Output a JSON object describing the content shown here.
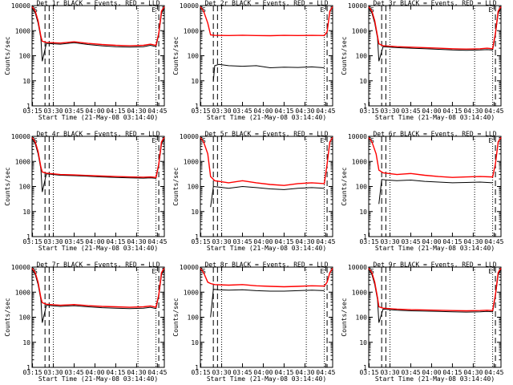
{
  "chart_data": [
    {
      "type": "line",
      "title": "Det 1r BLACK = Events, RED = LLD",
      "xlabel": "Start Time (21-May-08 03:14:40)",
      "ylabel": "Counts/sec",
      "xticks": [
        "03:15",
        "03:30",
        "03:45",
        "04:00",
        "04:15",
        "04:30",
        "04:45"
      ],
      "yticks": [
        "1",
        "10",
        "100",
        "1000",
        "10000"
      ],
      "xlim": [
        "03:14:40",
        "04:50"
      ],
      "ylim": [
        1,
        10000
      ],
      "yscale": "log",
      "series": [
        {
          "color": "#000000",
          "x": [
            "03:14:40",
            "03:17",
            "03:19",
            "03:21",
            "03:22",
            "03:25",
            "03:35",
            "03:45",
            "03:55",
            "04:05",
            "04:15",
            "04:25",
            "04:35",
            "04:40",
            "04:44",
            "04:46",
            "04:48",
            "04:50"
          ],
          "values": [
            8000,
            5000,
            2000,
            500,
            60,
            310,
            290,
            330,
            280,
            250,
            230,
            220,
            230,
            260,
            230,
            700,
            5000,
            8000
          ]
        },
        {
          "color": "#ff0000",
          "x": [
            "03:14:40",
            "03:17",
            "03:19",
            "03:21",
            "03:22",
            "03:25",
            "03:35",
            "03:45",
            "03:55",
            "04:05",
            "04:15",
            "04:25",
            "04:35",
            "04:40",
            "04:44",
            "04:46",
            "04:48",
            "04:50"
          ],
          "values": [
            9000,
            6000,
            2500,
            600,
            380,
            340,
            320,
            360,
            310,
            280,
            260,
            250,
            260,
            290,
            260,
            800,
            6000,
            9000
          ]
        }
      ]
    },
    {
      "type": "line",
      "title": "Det 2r BLACK = Events, RED = LLD",
      "xlabel": "Start Time (21-May-08 03:14:40)",
      "ylabel": "Counts/sec",
      "xticks": [
        "03:15",
        "03:30",
        "03:45",
        "04:00",
        "04:15",
        "04:30",
        "04:45"
      ],
      "yticks": [
        "1",
        "10",
        "100",
        "1000",
        "10000"
      ],
      "xlim": [
        "03:14:40",
        "04:50"
      ],
      "ylim": [
        1,
        10000
      ],
      "yscale": "log",
      "series": [
        {
          "color": "#000000",
          "x": [
            "03:24",
            "03:25",
            "03:28",
            "03:35",
            "03:45",
            "03:55",
            "04:05",
            "04:15",
            "04:25",
            "04:35",
            "04:44"
          ],
          "values": [
            10,
            40,
            45,
            40,
            38,
            40,
            33,
            35,
            34,
            36,
            33
          ]
        },
        {
          "color": "#ff0000",
          "x": [
            "03:14:40",
            "03:17",
            "03:20",
            "03:22",
            "03:25",
            "03:35",
            "03:45",
            "03:55",
            "04:05",
            "04:15",
            "04:25",
            "04:35",
            "04:44",
            "04:46",
            "04:48",
            "04:50"
          ],
          "values": [
            9000,
            6000,
            2000,
            680,
            650,
            640,
            660,
            640,
            630,
            650,
            640,
            650,
            640,
            900,
            6000,
            9000
          ]
        }
      ]
    },
    {
      "type": "line",
      "title": "Det 3r BLACK = Events, RED = LLD",
      "xlabel": "Start Time (21-May-08 03:14:40)",
      "ylabel": "Counts/sec",
      "xticks": [
        "03:15",
        "03:30",
        "03:45",
        "04:00",
        "04:15",
        "04:30",
        "04:45"
      ],
      "yticks": [
        "1",
        "10",
        "100",
        "1000",
        "10000"
      ],
      "xlim": [
        "03:14:40",
        "04:50"
      ],
      "ylim": [
        1,
        10000
      ],
      "yscale": "log",
      "series": [
        {
          "color": "#000000",
          "x": [
            "03:14:40",
            "03:17",
            "03:19",
            "03:21",
            "03:22",
            "03:25",
            "03:35",
            "03:45",
            "03:55",
            "04:05",
            "04:15",
            "04:25",
            "04:35",
            "04:40",
            "04:44",
            "04:46",
            "04:48",
            "04:50"
          ],
          "values": [
            8000,
            5000,
            2000,
            500,
            60,
            230,
            210,
            200,
            190,
            180,
            170,
            165,
            170,
            175,
            170,
            700,
            5000,
            8000
          ]
        },
        {
          "color": "#ff0000",
          "x": [
            "03:14:40",
            "03:17",
            "03:19",
            "03:21",
            "03:22",
            "03:25",
            "03:35",
            "03:45",
            "03:55",
            "04:05",
            "04:15",
            "04:25",
            "04:35",
            "04:40",
            "04:44",
            "04:46",
            "04:48",
            "04:50"
          ],
          "values": [
            9000,
            6000,
            2500,
            600,
            300,
            250,
            230,
            220,
            210,
            200,
            190,
            185,
            190,
            200,
            190,
            800,
            6000,
            9000
          ]
        }
      ]
    },
    {
      "type": "line",
      "title": "Det 4r BLACK = Events, RED = LLD",
      "xlabel": "Start Time (21-May-08 03:14:40)",
      "ylabel": "Counts/sec",
      "xticks": [
        "03:15",
        "03:30",
        "03:45",
        "04:00",
        "04:15",
        "04:30",
        "04:45"
      ],
      "yticks": [
        "1",
        "10",
        "100",
        "1000",
        "10000"
      ],
      "xlim": [
        "03:14:40",
        "04:50"
      ],
      "ylim": [
        1,
        10000
      ],
      "yscale": "log",
      "series": [
        {
          "color": "#000000",
          "x": [
            "03:14:40",
            "03:17",
            "03:19",
            "03:21",
            "03:22",
            "03:25",
            "03:35",
            "03:45",
            "03:55",
            "04:05",
            "04:15",
            "04:25",
            "04:35",
            "04:40",
            "04:44",
            "04:46",
            "04:48",
            "04:50"
          ],
          "values": [
            8000,
            5000,
            2000,
            500,
            60,
            320,
            280,
            270,
            255,
            240,
            230,
            220,
            215,
            220,
            210,
            700,
            5000,
            8000
          ]
        },
        {
          "color": "#ff0000",
          "x": [
            "03:14:40",
            "03:17",
            "03:19",
            "03:21",
            "03:22",
            "03:25",
            "03:35",
            "03:45",
            "03:55",
            "04:05",
            "04:15",
            "04:25",
            "04:35",
            "04:40",
            "04:44",
            "04:46",
            "04:48",
            "04:50"
          ],
          "values": [
            9000,
            6000,
            2500,
            600,
            380,
            340,
            300,
            290,
            275,
            260,
            250,
            240,
            235,
            240,
            230,
            800,
            6000,
            9000
          ]
        }
      ]
    },
    {
      "type": "line",
      "title": "Det 5r BLACK = Events, RED = LLD",
      "xlabel": "Start Time (21-May-08 03:14:40)",
      "ylabel": "Counts/sec",
      "xticks": [
        "03:15",
        "03:30",
        "03:45",
        "04:00",
        "04:15",
        "04:30",
        "04:45"
      ],
      "yticks": [
        "1",
        "10",
        "100",
        "1000",
        "10000"
      ],
      "xlim": [
        "03:14:40",
        "04:50"
      ],
      "ylim": [
        1,
        10000
      ],
      "yscale": "log",
      "series": [
        {
          "color": "#000000",
          "x": [
            "03:22",
            "03:24",
            "03:28",
            "03:35",
            "03:45",
            "03:55",
            "04:05",
            "04:15",
            "04:25",
            "04:35",
            "04:44"
          ],
          "values": [
            15,
            100,
            95,
            85,
            100,
            90,
            80,
            75,
            85,
            90,
            85
          ]
        },
        {
          "color": "#ff0000",
          "x": [
            "03:14:40",
            "03:17",
            "03:20",
            "03:22",
            "03:25",
            "03:35",
            "03:45",
            "03:55",
            "04:05",
            "04:15",
            "04:25",
            "04:35",
            "04:44",
            "04:46",
            "04:48",
            "04:50"
          ],
          "values": [
            9000,
            6000,
            2000,
            250,
            170,
            140,
            170,
            140,
            120,
            110,
            130,
            140,
            130,
            800,
            6000,
            9000
          ]
        }
      ]
    },
    {
      "type": "line",
      "title": "Det 6r BLACK = Events, RED = LLD",
      "xlabel": "Start Time (21-May-08 03:14:40)",
      "ylabel": "Counts/sec",
      "xticks": [
        "03:15",
        "03:30",
        "03:45",
        "04:00",
        "04:15",
        "04:30",
        "04:45"
      ],
      "yticks": [
        "1",
        "10",
        "100",
        "1000",
        "10000"
      ],
      "xlim": [
        "03:14:40",
        "04:50"
      ],
      "ylim": [
        1,
        10000
      ],
      "yscale": "log",
      "series": [
        {
          "color": "#000000",
          "x": [
            "03:22",
            "03:24",
            "03:28",
            "03:35",
            "03:45",
            "03:55",
            "04:05",
            "04:15",
            "04:25",
            "04:35",
            "04:44"
          ],
          "values": [
            20,
            190,
            180,
            170,
            180,
            160,
            150,
            140,
            145,
            150,
            140
          ]
        },
        {
          "color": "#ff0000",
          "x": [
            "03:14:40",
            "03:17",
            "03:20",
            "03:22",
            "03:25",
            "03:35",
            "03:45",
            "03:55",
            "04:05",
            "04:15",
            "04:25",
            "04:35",
            "04:44",
            "04:46",
            "04:48",
            "04:50"
          ],
          "values": [
            9000,
            6000,
            2000,
            450,
            350,
            300,
            330,
            280,
            250,
            230,
            240,
            250,
            240,
            800,
            6000,
            9000
          ]
        }
      ]
    },
    {
      "type": "line",
      "title": "Det 7r BLACK = Events, RED = LLD",
      "xlabel": "Start Time (21-May-08 03:14:40)",
      "ylabel": "Counts/sec",
      "xticks": [
        "03:15",
        "03:30",
        "03:45",
        "04:00",
        "04:15",
        "04:30",
        "04:45"
      ],
      "yticks": [
        "1",
        "10",
        "100",
        "1000",
        "10000"
      ],
      "xlim": [
        "03:14:40",
        "04:50"
      ],
      "ylim": [
        1,
        10000
      ],
      "yscale": "log",
      "series": [
        {
          "color": "#000000",
          "x": [
            "03:14:40",
            "03:17",
            "03:19",
            "03:21",
            "03:22",
            "03:25",
            "03:35",
            "03:45",
            "03:55",
            "04:05",
            "04:15",
            "04:25",
            "04:35",
            "04:40",
            "04:44",
            "04:46",
            "04:48",
            "04:50"
          ],
          "values": [
            8000,
            5000,
            2000,
            500,
            60,
            300,
            270,
            290,
            260,
            240,
            230,
            220,
            230,
            250,
            220,
            700,
            5000,
            8000
          ]
        },
        {
          "color": "#ff0000",
          "x": [
            "03:14:40",
            "03:17",
            "03:19",
            "03:21",
            "03:22",
            "03:25",
            "03:35",
            "03:45",
            "03:55",
            "04:05",
            "04:15",
            "04:25",
            "04:35",
            "04:40",
            "04:44",
            "04:46",
            "04:48",
            "04:50"
          ],
          "values": [
            9000,
            6000,
            2500,
            600,
            380,
            330,
            300,
            320,
            290,
            270,
            260,
            250,
            260,
            280,
            250,
            800,
            6000,
            9000
          ]
        }
      ]
    },
    {
      "type": "line",
      "title": "Det 8r BLACK = Events, RED = LLD",
      "xlabel": "Start Time (21-May-08 03:14:40)",
      "ylabel": "Counts/sec",
      "xticks": [
        "03:15",
        "03:30",
        "03:45",
        "04:00",
        "04:15",
        "04:30",
        "04:45"
      ],
      "yticks": [
        "1",
        "10",
        "100",
        "1000",
        "10000"
      ],
      "xlim": [
        "03:14:40",
        "04:50"
      ],
      "ylim": [
        1,
        10000
      ],
      "yscale": "log",
      "series": [
        {
          "color": "#000000",
          "x": [
            "03:22",
            "03:24",
            "03:28",
            "03:35",
            "03:45",
            "03:55",
            "04:05",
            "04:15",
            "04:25",
            "04:35",
            "04:44"
          ],
          "values": [
            100,
            1300,
            1250,
            1200,
            1250,
            1150,
            1100,
            1100,
            1150,
            1200,
            1150
          ]
        },
        {
          "color": "#ff0000",
          "x": [
            "03:14:40",
            "03:17",
            "03:20",
            "03:22",
            "03:25",
            "03:35",
            "03:45",
            "03:55",
            "04:05",
            "04:15",
            "04:25",
            "04:35",
            "04:44",
            "04:46",
            "04:48",
            "04:50"
          ],
          "values": [
            9000,
            6000,
            2500,
            2200,
            2000,
            1900,
            2000,
            1800,
            1700,
            1650,
            1700,
            1800,
            1750,
            2500,
            6000,
            9000
          ]
        }
      ]
    },
    {
      "type": "line",
      "title": "Det 9r BLACK = Events, RED = LLD",
      "xlabel": "Start Time (21-May-08 03:14:40)",
      "ylabel": "Counts/sec",
      "xticks": [
        "03:15",
        "03:30",
        "03:45",
        "04:00",
        "04:15",
        "04:30",
        "04:45"
      ],
      "yticks": [
        "1",
        "10",
        "100",
        "1000",
        "10000"
      ],
      "xlim": [
        "03:14:40",
        "04:50"
      ],
      "ylim": [
        1,
        10000
      ],
      "yscale": "log",
      "series": [
        {
          "color": "#000000",
          "x": [
            "03:14:40",
            "03:17",
            "03:19",
            "03:21",
            "03:22",
            "03:25",
            "03:35",
            "03:45",
            "03:55",
            "04:05",
            "04:15",
            "04:25",
            "04:35",
            "04:40",
            "04:44",
            "04:46",
            "04:48",
            "04:50"
          ],
          "values": [
            8000,
            5000,
            2000,
            500,
            60,
            210,
            190,
            180,
            175,
            170,
            165,
            160,
            165,
            170,
            165,
            700,
            5000,
            8000
          ]
        },
        {
          "color": "#ff0000",
          "x": [
            "03:14:40",
            "03:17",
            "03:19",
            "03:21",
            "03:22",
            "03:25",
            "03:35",
            "03:45",
            "03:55",
            "04:05",
            "04:15",
            "04:25",
            "04:35",
            "04:40",
            "04:44",
            "04:46",
            "04:48",
            "04:50"
          ],
          "values": [
            9000,
            6000,
            2500,
            600,
            260,
            230,
            210,
            200,
            195,
            190,
            185,
            180,
            185,
            190,
            185,
            800,
            6000,
            9000
          ]
        }
      ]
    }
  ],
  "markers": {
    "dashed": [
      "03:24",
      "03:27",
      "04:46"
    ],
    "dotted": [
      "03:30",
      "04:31",
      "04:44"
    ],
    "corner_labels": [
      "S",
      "E"
    ]
  }
}
